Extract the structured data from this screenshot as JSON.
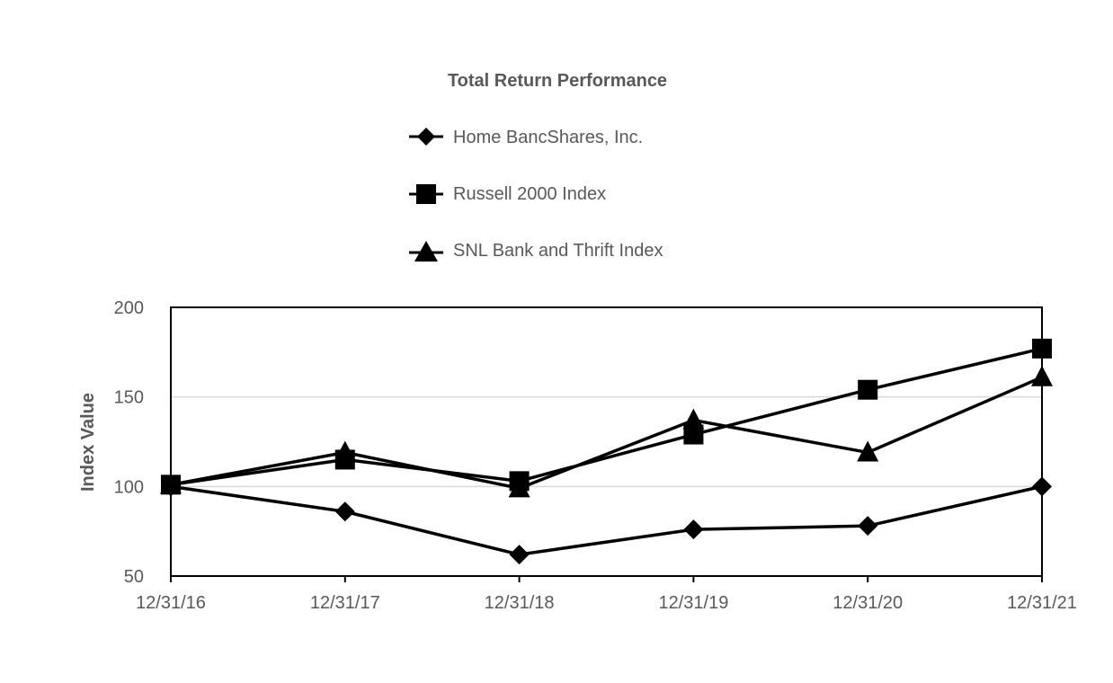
{
  "chart_data": {
    "type": "line",
    "title": "Total Return Performance",
    "xlabel": "",
    "ylabel": "Index Value",
    "ylim": [
      50,
      200
    ],
    "yticks": [
      "200",
      "150",
      "100",
      "50"
    ],
    "ytick_values": [
      200,
      150,
      100,
      50
    ],
    "categories": [
      "12/31/16",
      "12/31/17",
      "12/31/18",
      "12/31/19",
      "12/31/20",
      "12/31/21"
    ],
    "grid": "horizontal",
    "legend_position": "top-center",
    "series": [
      {
        "name": "Home BancShares, Inc.",
        "marker": "diamond",
        "color": "#000000",
        "values": [
          100,
          86,
          62,
          76,
          78,
          100
        ]
      },
      {
        "name": "Russell 2000 Index",
        "marker": "square",
        "color": "#000000",
        "values": [
          101,
          115,
          103,
          129,
          154,
          177
        ]
      },
      {
        "name": "SNL Bank and Thrift Index",
        "marker": "triangle",
        "color": "#000000",
        "values": [
          101,
          119,
          99,
          137,
          119,
          161
        ]
      }
    ]
  }
}
